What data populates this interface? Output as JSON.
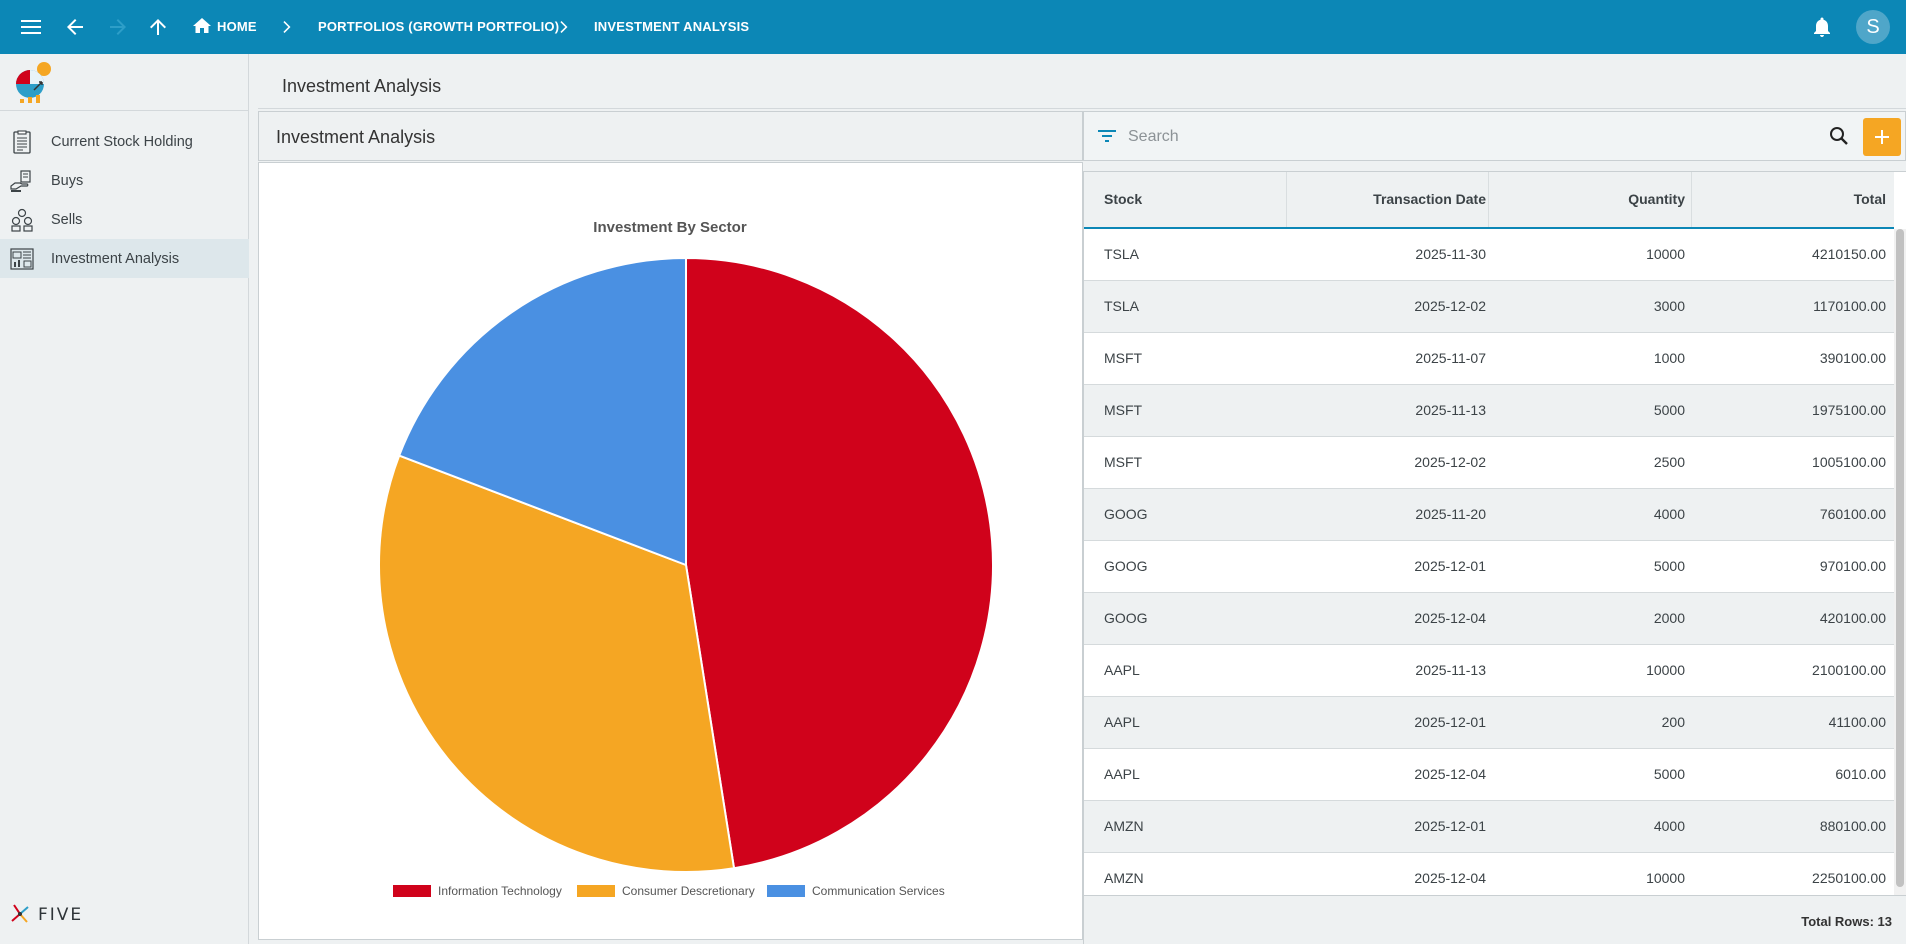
{
  "topbar": {
    "breadcrumbs": [
      "HOME",
      "PORTFOLIOS (GROWTH PORTFOLIO)",
      "INVESTMENT ANALYSIS"
    ],
    "avatar_letter": "S"
  },
  "sidebar": {
    "items": [
      {
        "label": "Current Stock Holding",
        "icon": "clipboard-list-icon"
      },
      {
        "label": "Buys",
        "icon": "hand-money-icon"
      },
      {
        "label": "Sells",
        "icon": "coins-stack-icon"
      },
      {
        "label": "Investment Analysis",
        "icon": "dashboard-analysis-icon",
        "active": true
      }
    ],
    "brand": "FIVE"
  },
  "page": {
    "title": "Investment Analysis"
  },
  "chart_panel": {
    "title": "Investment Analysis"
  },
  "chart_data": {
    "type": "pie",
    "title": "Investment By Sector",
    "slices": [
      {
        "label": "Information Technology",
        "value": 47.5,
        "color": "#d0021b"
      },
      {
        "label": "Consumer Descretionary",
        "value": 33.3,
        "color": "#f5a623"
      },
      {
        "label": "Communication Services",
        "value": 19.2,
        "color": "#4a90e2"
      }
    ],
    "legend_position": "bottom"
  },
  "search": {
    "placeholder": "Search",
    "value": ""
  },
  "grid": {
    "columns": [
      "Stock",
      "Transaction Date",
      "Quantity",
      "Total"
    ],
    "rows": [
      [
        "TSLA",
        "2025-11-30",
        "10000",
        "4210150.00"
      ],
      [
        "TSLA",
        "2025-12-02",
        "3000",
        "1170100.00"
      ],
      [
        "MSFT",
        "2025-11-07",
        "1000",
        "390100.00"
      ],
      [
        "MSFT",
        "2025-11-13",
        "5000",
        "1975100.00"
      ],
      [
        "MSFT",
        "2025-12-02",
        "2500",
        "1005100.00"
      ],
      [
        "GOOG",
        "2025-11-20",
        "4000",
        "760100.00"
      ],
      [
        "GOOG",
        "2025-12-01",
        "5000",
        "970100.00"
      ],
      [
        "GOOG",
        "2025-12-04",
        "2000",
        "420100.00"
      ],
      [
        "AAPL",
        "2025-11-13",
        "10000",
        "2100100.00"
      ],
      [
        "AAPL",
        "2025-12-01",
        "200",
        "41100.00"
      ],
      [
        "AAPL",
        "2025-12-04",
        "5000",
        "6010.00"
      ],
      [
        "AMZN",
        "2025-12-01",
        "4000",
        "880100.00"
      ],
      [
        "AMZN",
        "2025-12-04",
        "10000",
        "2250100.00"
      ]
    ],
    "footer": "Total Rows: 13"
  },
  "colors": {
    "topbar": "#0c87b6",
    "accent": "#f5a623",
    "active_menu": "#dde7eb"
  }
}
